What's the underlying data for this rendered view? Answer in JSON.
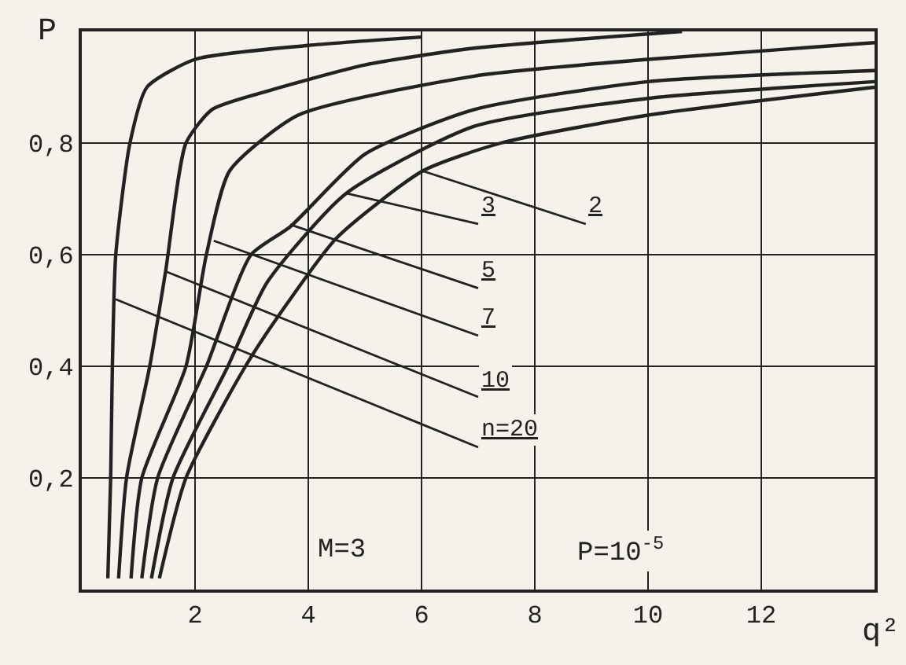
{
  "chart_data": {
    "type": "line",
    "xlabel": "q²",
    "ylabel": "P",
    "xlim": [
      0,
      14
    ],
    "ylim": [
      0,
      1
    ],
    "xticks": [
      2,
      4,
      6,
      8,
      10,
      12
    ],
    "yticks": [
      {
        "value": 0.2,
        "label": "0,2"
      },
      {
        "value": 0.4,
        "label": "0,4"
      },
      {
        "value": 0.6,
        "label": "0,6"
      },
      {
        "value": 0.8,
        "label": "0,8"
      }
    ],
    "grid": true,
    "marker": "none",
    "line_style": "solid",
    "series": [
      {
        "color": "#222222",
        "x": [
          0.46,
          0.51,
          0.54,
          0.6,
          0.85,
          1.15,
          2,
          4,
          6
        ],
        "values": [
          0.02,
          0.2,
          0.4,
          0.6,
          0.8,
          0.9,
          0.95,
          0.975,
          0.99
        ]
      },
      {
        "color": "#222222",
        "x": [
          0.65,
          0.79,
          1.2,
          1.48,
          1.84,
          2.3,
          3.17,
          5,
          6.93,
          10.6
        ],
        "values": [
          0.02,
          0.2,
          0.4,
          0.57,
          0.8,
          0.86,
          0.89,
          0.94,
          0.97,
          1.0
        ]
      },
      {
        "color": "#222222",
        "x": [
          0.87,
          1.06,
          1.84,
          2.2,
          2.61,
          3.82,
          6.93,
          10,
          14
        ],
        "values": [
          0.02,
          0.2,
          0.4,
          0.6,
          0.75,
          0.85,
          0.92,
          0.95,
          0.98
        ]
      },
      {
        "color": "#222222",
        "x": [
          1.06,
          1.34,
          2.2,
          2.99,
          3.68,
          5,
          6.93,
          10,
          14
        ],
        "values": [
          0.02,
          0.2,
          0.4,
          0.6,
          0.65,
          0.78,
          0.86,
          0.91,
          0.93
        ]
      },
      {
        "color": "#222222",
        "x": [
          1.23,
          1.61,
          2.58,
          3.27,
          4.67,
          6.93,
          10,
          14
        ],
        "values": [
          0.02,
          0.2,
          0.4,
          0.55,
          0.71,
          0.83,
          0.88,
          0.91
        ]
      },
      {
        "color": "#222222",
        "x": [
          1.37,
          1.84,
          2.89,
          3.54,
          4.5,
          6.02,
          7.4,
          10,
          14
        ],
        "values": [
          0.02,
          0.2,
          0.4,
          0.5,
          0.63,
          0.75,
          0.8,
          0.85,
          0.9
        ]
      }
    ],
    "annotations": [
      {
        "text": "n=20",
        "x": 0.6,
        "y": 0.52
      },
      {
        "text": "10",
        "x": 1.48,
        "y": 0.57
      },
      {
        "text": "7",
        "x": 2.33,
        "y": 0.625
      },
      {
        "text": "5",
        "x": 3.68,
        "y": 0.654
      },
      {
        "text": "3",
        "x": 4.67,
        "y": 0.71
      },
      {
        "text": "2",
        "x": 6.02,
        "y": 0.75
      },
      "M=3",
      "P=10$^{-5}$"
    ]
  }
}
